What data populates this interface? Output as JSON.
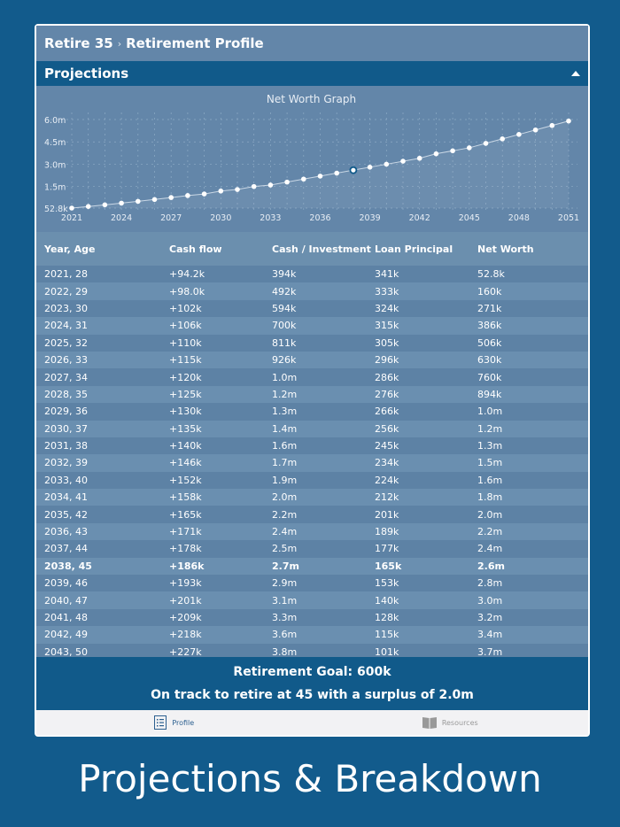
{
  "breadcrumb": {
    "app": "Retire 35",
    "separator": "›",
    "page": "Retirement Profile"
  },
  "section": {
    "title": "Projections",
    "collapse_icon": "triangle-up-icon"
  },
  "chart_data": {
    "type": "line",
    "title": "Net Worth Graph",
    "xlabel": "",
    "ylabel": "",
    "x_ticks": [
      "2021",
      "2024",
      "2027",
      "2030",
      "2033",
      "2036",
      "2039",
      "2042",
      "2045",
      "2048",
      "2051"
    ],
    "y_ticks": [
      "52.8k",
      "1.5m",
      "3.0m",
      "4.5m",
      "6.0m"
    ],
    "ylim": [
      0.0528,
      6.0
    ],
    "y_unit": "millions",
    "grid": true,
    "highlight_year": 2038,
    "x": [
      2021,
      2022,
      2023,
      2024,
      2025,
      2026,
      2027,
      2028,
      2029,
      2030,
      2031,
      2032,
      2033,
      2034,
      2035,
      2036,
      2037,
      2038,
      2039,
      2040,
      2041,
      2042,
      2043,
      2044,
      2045,
      2046,
      2047,
      2048,
      2049,
      2050,
      2051
    ],
    "values": [
      0.0528,
      0.16,
      0.271,
      0.386,
      0.506,
      0.63,
      0.76,
      0.894,
      1.0,
      1.2,
      1.3,
      1.5,
      1.6,
      1.8,
      2.0,
      2.2,
      2.4,
      2.6,
      2.8,
      3.0,
      3.2,
      3.4,
      3.7,
      3.9,
      4.1,
      4.4,
      4.7,
      5.0,
      5.3,
      5.6,
      5.9
    ]
  },
  "table": {
    "headers": [
      "Year, Age",
      "Cash flow",
      "Cash / Investment",
      "Loan Principal",
      "Net Worth"
    ],
    "highlight_row": 17,
    "rows": [
      [
        "2021, 28",
        "+94.2k",
        "394k",
        "341k",
        "52.8k"
      ],
      [
        "2022, 29",
        "+98.0k",
        "492k",
        "333k",
        "160k"
      ],
      [
        "2023, 30",
        "+102k",
        "594k",
        "324k",
        "271k"
      ],
      [
        "2024, 31",
        "+106k",
        "700k",
        "315k",
        "386k"
      ],
      [
        "2025, 32",
        "+110k",
        "811k",
        "305k",
        "506k"
      ],
      [
        "2026, 33",
        "+115k",
        "926k",
        "296k",
        "630k"
      ],
      [
        "2027, 34",
        "+120k",
        "1.0m",
        "286k",
        "760k"
      ],
      [
        "2028, 35",
        "+125k",
        "1.2m",
        "276k",
        "894k"
      ],
      [
        "2029, 36",
        "+130k",
        "1.3m",
        "266k",
        "1.0m"
      ],
      [
        "2030, 37",
        "+135k",
        "1.4m",
        "256k",
        "1.2m"
      ],
      [
        "2031, 38",
        "+140k",
        "1.6m",
        "245k",
        "1.3m"
      ],
      [
        "2032, 39",
        "+146k",
        "1.7m",
        "234k",
        "1.5m"
      ],
      [
        "2033, 40",
        "+152k",
        "1.9m",
        "224k",
        "1.6m"
      ],
      [
        "2034, 41",
        "+158k",
        "2.0m",
        "212k",
        "1.8m"
      ],
      [
        "2035, 42",
        "+165k",
        "2.2m",
        "201k",
        "2.0m"
      ],
      [
        "2036, 43",
        "+171k",
        "2.4m",
        "189k",
        "2.2m"
      ],
      [
        "2037, 44",
        "+178k",
        "2.5m",
        "177k",
        "2.4m"
      ],
      [
        "2038, 45",
        "+186k",
        "2.7m",
        "165k",
        "2.6m"
      ],
      [
        "2039, 46",
        "+193k",
        "2.9m",
        "153k",
        "2.8m"
      ],
      [
        "2040, 47",
        "+201k",
        "3.1m",
        "140k",
        "3.0m"
      ],
      [
        "2041, 48",
        "+209k",
        "3.3m",
        "128k",
        "3.2m"
      ],
      [
        "2042, 49",
        "+218k",
        "3.6m",
        "115k",
        "3.4m"
      ],
      [
        "2043, 50",
        "+227k",
        "3.8m",
        "101k",
        "3.7m"
      ]
    ]
  },
  "summary": {
    "goal": "Retirement Goal: 600k",
    "status": "On track to retire at 45 with a surplus of 2.0m"
  },
  "tabs": [
    {
      "label": "Profile",
      "icon": "list-icon"
    },
    {
      "label": "Resources",
      "icon": "book-icon"
    }
  ],
  "caption": "Projections & Breakdown"
}
